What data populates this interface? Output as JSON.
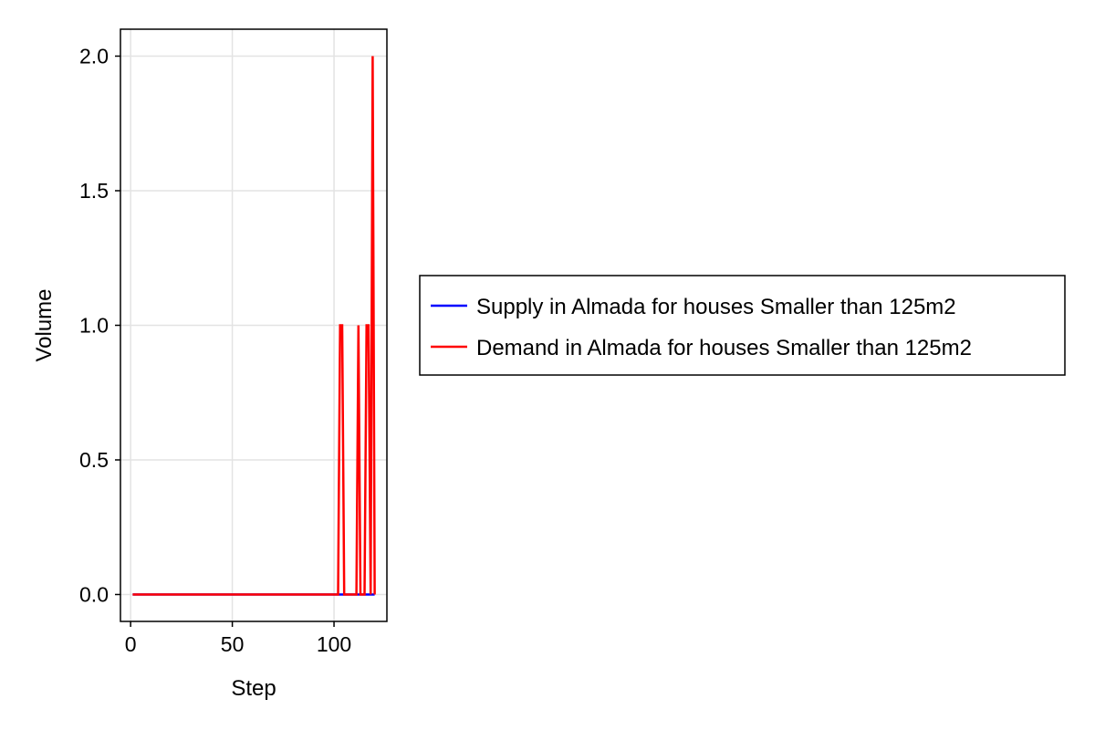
{
  "chart_data": {
    "type": "line",
    "title": "",
    "xlabel": "Step",
    "ylabel": "Volume",
    "xlim": [
      -5,
      126
    ],
    "ylim": [
      -0.1,
      2.1
    ],
    "x_ticks": [
      0,
      50,
      100
    ],
    "x_tick_labels": [
      "0",
      "50",
      "100"
    ],
    "y_ticks": [
      0.0,
      0.5,
      1.0,
      1.5,
      2.0
    ],
    "y_tick_labels": [
      "0.0",
      "0.5",
      "1.0",
      "1.5",
      "2.0"
    ],
    "grid": true,
    "legend_position": "outside-right",
    "series": [
      {
        "name": "Supply in Almada for houses Smaller than 125m2",
        "color": "#0000ff",
        "x": [
          1,
          120
        ],
        "y": [
          0,
          0
        ]
      },
      {
        "name": "Demand in Almada for houses Smaller than 125m2",
        "color": "#ff0000",
        "x": [
          1,
          102,
          103,
          104,
          105,
          111,
          112,
          113,
          115,
          116,
          117,
          118,
          119,
          120
        ],
        "y": [
          0,
          0,
          1,
          1,
          0,
          0,
          1,
          0,
          0,
          1,
          1,
          0,
          2,
          0
        ]
      }
    ]
  }
}
